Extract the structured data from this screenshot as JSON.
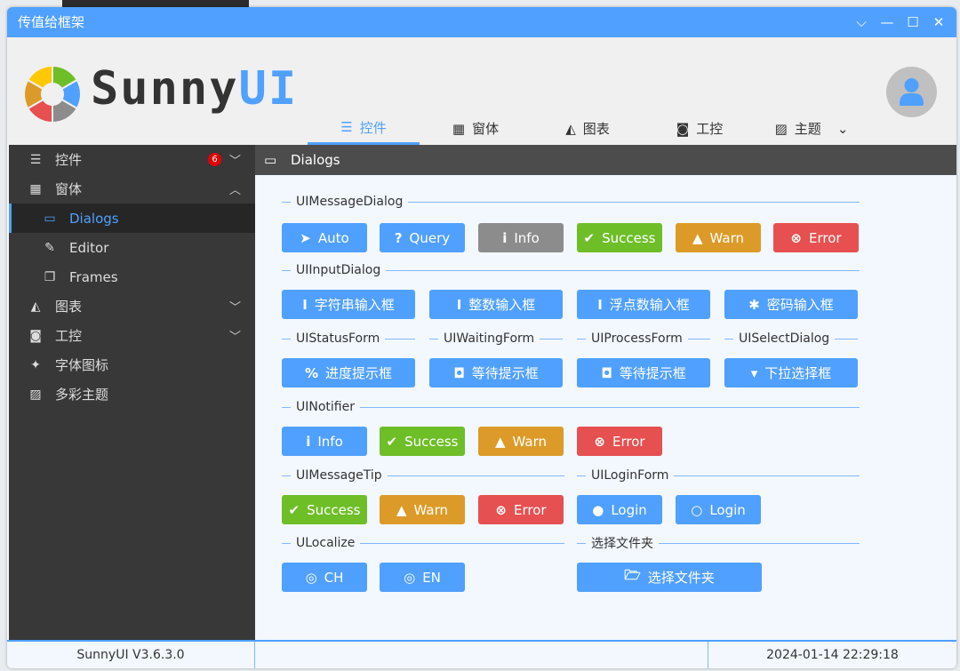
{
  "window": {
    "title": "传值给框架",
    "controls": [
      "chevron-down",
      "minimize",
      "maximize",
      "close"
    ]
  },
  "header": {
    "logo_text_a": "Sunny",
    "logo_text_b": "UI",
    "tabs": [
      {
        "label": "控件",
        "icon": "list-icon",
        "active": true
      },
      {
        "label": "窗体",
        "icon": "windows-icon"
      },
      {
        "label": "图表",
        "icon": "area-chart-icon"
      },
      {
        "label": "工控",
        "icon": "gauge-icon"
      },
      {
        "label": "主题",
        "icon": "image-icon",
        "dropdown": true
      }
    ]
  },
  "sidebar": {
    "items": [
      {
        "label": "控件",
        "icon": "list-icon",
        "badge": "6",
        "chevron": "down"
      },
      {
        "label": "窗体",
        "icon": "windows-icon",
        "chevron": "up"
      },
      {
        "label": "Dialogs",
        "icon": "window-icon",
        "child": true,
        "selected": true
      },
      {
        "label": "Editor",
        "icon": "edit-icon",
        "child": true
      },
      {
        "label": "Frames",
        "icon": "copy-icon",
        "child": true
      },
      {
        "label": "图表",
        "icon": "area-chart-icon",
        "chevron": "down"
      },
      {
        "label": "工控",
        "icon": "gauge-icon",
        "chevron": "down"
      },
      {
        "label": "字体图标",
        "icon": "font-icon"
      },
      {
        "label": "多彩主题",
        "icon": "image-icon"
      }
    ]
  },
  "main": {
    "title": "Dialogs",
    "groups": [
      "UIMessageDialog",
      "UIInputDialog",
      "UIStatusForm",
      "UIWaitingForm",
      "UIProcessForm",
      "UISelectDialog",
      "UINotifier",
      "UIMessageTip",
      "UILoginForm",
      "ULocalize",
      "选择文件夹"
    ],
    "buttons": [
      {
        "label": "Auto",
        "icon": "location-arrow-icon",
        "color": "#50a0ff"
      },
      {
        "label": "Query",
        "icon": "question-icon",
        "color": "#50a0ff"
      },
      {
        "label": "Info",
        "icon": "info-icon",
        "color": "#8c8c8c"
      },
      {
        "label": "Success",
        "icon": "check-circle-icon",
        "color": "#6ebe28"
      },
      {
        "label": "Warn",
        "icon": "warning-icon",
        "color": "#dc9b28"
      },
      {
        "label": "Error",
        "icon": "error-icon",
        "color": "#e65050"
      },
      {
        "label": "字符串输入框",
        "icon": "text-cursor-icon",
        "color": "#50a0ff"
      },
      {
        "label": "整数输入框",
        "icon": "text-cursor-icon",
        "color": "#50a0ff"
      },
      {
        "label": "浮点数输入框",
        "icon": "text-cursor-icon",
        "color": "#50a0ff"
      },
      {
        "label": "密码输入框",
        "icon": "asterisk-icon",
        "color": "#50a0ff"
      },
      {
        "label": "进度提示框",
        "icon": "percent-icon",
        "color": "#50a0ff"
      },
      {
        "label": "等待提示框",
        "icon": "waiting-icon",
        "color": "#50a0ff"
      },
      {
        "label": "等待提示框",
        "icon": "waiting-icon",
        "color": "#50a0ff"
      },
      {
        "label": "下拉选择框",
        "icon": "caret-down-icon",
        "color": "#50a0ff"
      },
      {
        "label": "Info",
        "icon": "info-icon",
        "color": "#50a0ff"
      },
      {
        "label": "Success",
        "icon": "check-circle-icon",
        "color": "#6ebe28"
      },
      {
        "label": "Warn",
        "icon": "warning-icon",
        "color": "#dc9b28"
      },
      {
        "label": "Error",
        "icon": "error-icon",
        "color": "#e65050"
      },
      {
        "label": "Success",
        "icon": "check-circle-icon",
        "color": "#6ebe28"
      },
      {
        "label": "Warn",
        "icon": "warning-icon",
        "color": "#dc9b28"
      },
      {
        "label": "Error",
        "icon": "error-icon",
        "color": "#e65050"
      },
      {
        "label": "Login",
        "icon": "user-icon",
        "color": "#50a0ff"
      },
      {
        "label": "Login",
        "icon": "user-outline-icon",
        "color": "#50a0ff"
      },
      {
        "label": "CH",
        "icon": "globe-icon",
        "color": "#50a0ff"
      },
      {
        "label": "EN",
        "icon": "globe-icon",
        "color": "#50a0ff"
      },
      {
        "label": "选择文件夹",
        "icon": "folder-open-icon",
        "color": "#50a0ff"
      }
    ]
  },
  "footer": {
    "version": "SunnyUI V3.6.3.0",
    "datetime": "2024-01-14 22:29:18"
  },
  "colors": {
    "accent": "#50a0ff",
    "sidebar": "#383838",
    "success": "#6ebe28",
    "warn": "#dc9b28",
    "error": "#e65050",
    "info": "#8c8c8c"
  }
}
